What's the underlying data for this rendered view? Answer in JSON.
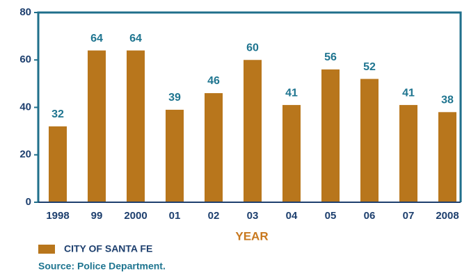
{
  "chart_data": {
    "type": "bar",
    "categories": [
      "1998",
      "99",
      "2000",
      "01",
      "02",
      "03",
      "04",
      "05",
      "06",
      "07",
      "2008"
    ],
    "values": [
      32,
      64,
      64,
      39,
      46,
      60,
      41,
      56,
      52,
      41,
      38
    ],
    "color": "#b8761c",
    "ylim": [
      0,
      80
    ],
    "yticks": [
      0,
      20,
      40,
      60,
      80
    ],
    "x_label": "YEAR",
    "legend": "CITY OF SANTA FE",
    "source": "Source: Police Department."
  }
}
